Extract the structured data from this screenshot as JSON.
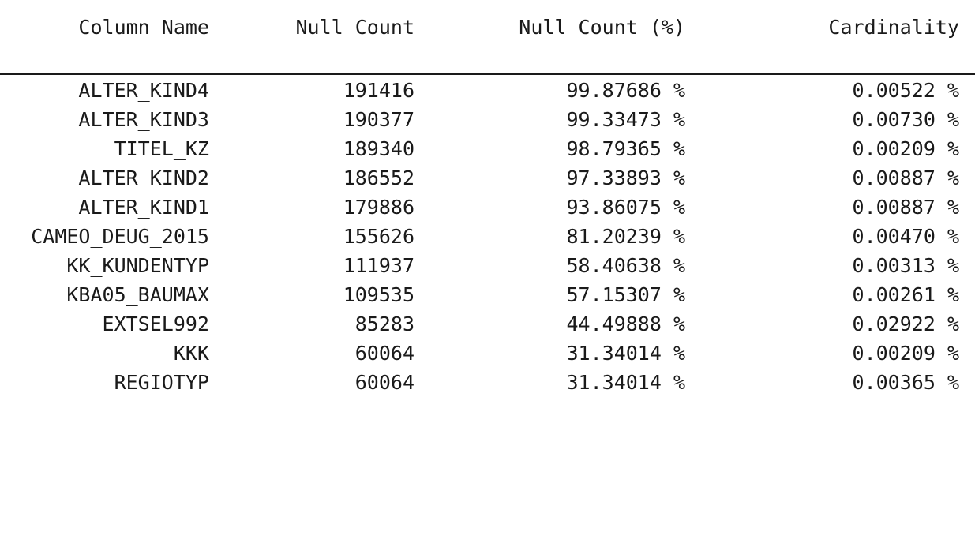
{
  "columns": {
    "col1": "Column Name",
    "col2": "Null Count",
    "col3": "Null Count (%)",
    "col4": "Cardinality"
  },
  "rows": [
    {
      "name": "ALTER_KIND4",
      "null_count": "191416",
      "null_pct": "99.87686 %",
      "cardinality": "0.00522 %"
    },
    {
      "name": "ALTER_KIND3",
      "null_count": "190377",
      "null_pct": "99.33473 %",
      "cardinality": "0.00730 %"
    },
    {
      "name": "TITEL_KZ",
      "null_count": "189340",
      "null_pct": "98.79365 %",
      "cardinality": "0.00209 %"
    },
    {
      "name": "ALTER_KIND2",
      "null_count": "186552",
      "null_pct": "97.33893 %",
      "cardinality": "0.00887 %"
    },
    {
      "name": "ALTER_KIND1",
      "null_count": "179886",
      "null_pct": "93.86075 %",
      "cardinality": "0.00887 %"
    },
    {
      "name": "CAMEO_DEUG_2015",
      "null_count": "155626",
      "null_pct": "81.20239 %",
      "cardinality": "0.00470 %"
    },
    {
      "name": "KK_KUNDENTYP",
      "null_count": "111937",
      "null_pct": "58.40638 %",
      "cardinality": "0.00313 %"
    },
    {
      "name": "KBA05_BAUMAX",
      "null_count": "109535",
      "null_pct": "57.15307 %",
      "cardinality": "0.00261 %"
    },
    {
      "name": "EXTSEL992",
      "null_count": "85283",
      "null_pct": "44.49888 %",
      "cardinality": "0.02922 %"
    },
    {
      "name": "KKK",
      "null_count": "60064",
      "null_pct": "31.34014 %",
      "cardinality": "0.00209 %"
    },
    {
      "name": "REGIOTYP",
      "null_count": "60064",
      "null_pct": "31.34014 %",
      "cardinality": "0.00365 %"
    }
  ]
}
